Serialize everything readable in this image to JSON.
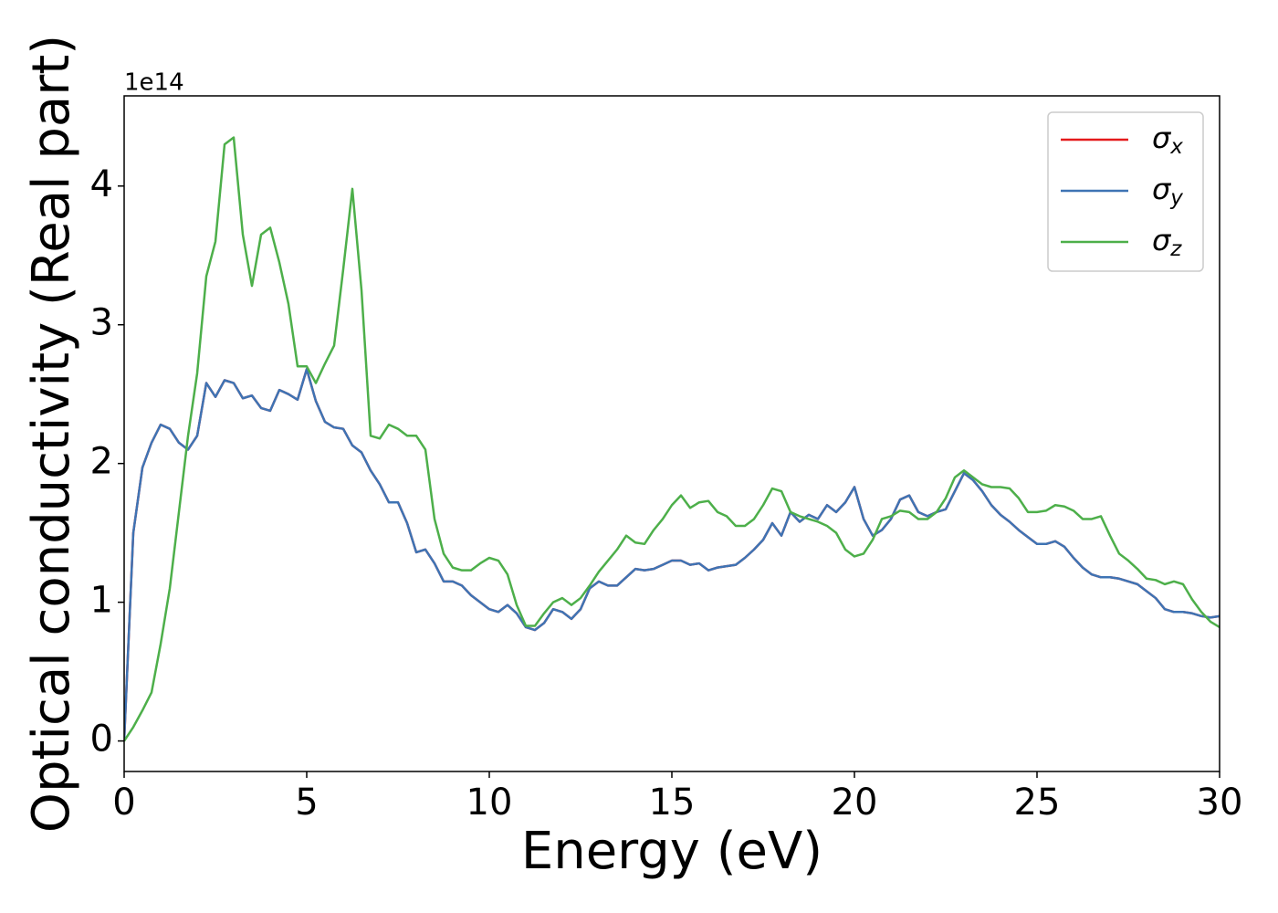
{
  "chart_data": {
    "type": "line",
    "xlabel": "Energy (eV)",
    "ylabel": "Optical conductivity (Real part)",
    "y_offset_label": "1e14",
    "x": [
      0,
      0.25,
      0.5,
      0.75,
      1,
      1.25,
      1.5,
      1.75,
      2,
      2.25,
      2.5,
      2.75,
      3,
      3.25,
      3.5,
      3.75,
      4,
      4.25,
      4.5,
      4.75,
      5,
      5.25,
      5.5,
      5.75,
      6,
      6.25,
      6.5,
      6.75,
      7,
      7.25,
      7.5,
      7.75,
      8,
      8.25,
      8.5,
      8.75,
      9,
      9.25,
      9.5,
      9.75,
      10,
      10.25,
      10.5,
      10.75,
      11,
      11.25,
      11.5,
      11.75,
      12,
      12.25,
      12.5,
      12.75,
      13,
      13.25,
      13.5,
      13.75,
      14,
      14.25,
      14.5,
      14.75,
      15,
      15.25,
      15.5,
      15.75,
      16,
      16.25,
      16.5,
      16.75,
      17,
      17.25,
      17.5,
      17.75,
      18,
      18.25,
      18.5,
      18.75,
      19,
      19.25,
      19.5,
      19.75,
      20,
      20.25,
      20.5,
      20.75,
      21,
      21.25,
      21.5,
      21.75,
      22,
      22.25,
      22.5,
      22.75,
      23,
      23.25,
      23.5,
      23.75,
      24,
      24.25,
      24.5,
      24.75,
      25,
      25.25,
      25.5,
      25.75,
      26,
      26.25,
      26.5,
      26.75,
      27,
      27.25,
      27.5,
      27.75,
      28,
      28.25,
      28.5,
      28.75,
      29,
      29.25,
      29.5,
      29.75,
      30
    ],
    "series": [
      {
        "name": "σx",
        "color": "#e41a1c",
        "values": [
          0,
          1.5,
          1.97,
          2.15,
          2.28,
          2.25,
          2.15,
          2.1,
          2.2,
          2.58,
          2.48,
          2.6,
          2.58,
          2.47,
          2.49,
          2.4,
          2.38,
          2.53,
          2.5,
          2.46,
          2.68,
          2.45,
          2.3,
          2.26,
          2.25,
          2.13,
          2.08,
          1.95,
          1.85,
          1.72,
          1.72,
          1.57,
          1.36,
          1.38,
          1.28,
          1.15,
          1.15,
          1.12,
          1.05,
          1.0,
          0.95,
          0.93,
          0.98,
          0.92,
          0.82,
          0.8,
          0.85,
          0.95,
          0.93,
          0.88,
          0.95,
          1.1,
          1.15,
          1.12,
          1.12,
          1.18,
          1.24,
          1.23,
          1.24,
          1.27,
          1.3,
          1.3,
          1.27,
          1.28,
          1.23,
          1.25,
          1.26,
          1.27,
          1.32,
          1.38,
          1.45,
          1.57,
          1.48,
          1.65,
          1.58,
          1.63,
          1.6,
          1.7,
          1.65,
          1.72,
          1.83,
          1.6,
          1.48,
          1.52,
          1.6,
          1.74,
          1.77,
          1.65,
          1.62,
          1.65,
          1.67,
          1.8,
          1.93,
          1.88,
          1.8,
          1.7,
          1.63,
          1.58,
          1.52,
          1.47,
          1.42,
          1.42,
          1.44,
          1.4,
          1.32,
          1.25,
          1.2,
          1.18,
          1.18,
          1.17,
          1.15,
          1.13,
          1.08,
          1.03,
          0.95,
          0.93,
          0.93,
          0.92,
          0.9,
          0.89,
          0.9
        ]
      },
      {
        "name": "σy",
        "color": "#3e74b4",
        "values": [
          0,
          1.5,
          1.97,
          2.15,
          2.28,
          2.25,
          2.15,
          2.1,
          2.2,
          2.58,
          2.48,
          2.6,
          2.58,
          2.47,
          2.49,
          2.4,
          2.38,
          2.53,
          2.5,
          2.46,
          2.68,
          2.45,
          2.3,
          2.26,
          2.25,
          2.13,
          2.08,
          1.95,
          1.85,
          1.72,
          1.72,
          1.57,
          1.36,
          1.38,
          1.28,
          1.15,
          1.15,
          1.12,
          1.05,
          1.0,
          0.95,
          0.93,
          0.98,
          0.92,
          0.82,
          0.8,
          0.85,
          0.95,
          0.93,
          0.88,
          0.95,
          1.1,
          1.15,
          1.12,
          1.12,
          1.18,
          1.24,
          1.23,
          1.24,
          1.27,
          1.3,
          1.3,
          1.27,
          1.28,
          1.23,
          1.25,
          1.26,
          1.27,
          1.32,
          1.38,
          1.45,
          1.57,
          1.48,
          1.65,
          1.58,
          1.63,
          1.6,
          1.7,
          1.65,
          1.72,
          1.83,
          1.6,
          1.48,
          1.52,
          1.6,
          1.74,
          1.77,
          1.65,
          1.62,
          1.65,
          1.67,
          1.8,
          1.93,
          1.88,
          1.8,
          1.7,
          1.63,
          1.58,
          1.52,
          1.47,
          1.42,
          1.42,
          1.44,
          1.4,
          1.32,
          1.25,
          1.2,
          1.18,
          1.18,
          1.17,
          1.15,
          1.13,
          1.08,
          1.03,
          0.95,
          0.93,
          0.93,
          0.92,
          0.9,
          0.89,
          0.9
        ]
      },
      {
        "name": "σz",
        "color": "#4daf4a",
        "values": [
          0,
          0.1,
          0.22,
          0.35,
          0.7,
          1.1,
          1.65,
          2.2,
          2.65,
          3.35,
          3.6,
          4.3,
          4.35,
          3.65,
          3.28,
          3.65,
          3.7,
          3.45,
          3.15,
          2.7,
          2.7,
          2.58,
          2.72,
          2.85,
          3.4,
          3.98,
          3.25,
          2.2,
          2.18,
          2.28,
          2.25,
          2.2,
          2.2,
          2.1,
          1.6,
          1.35,
          1.25,
          1.23,
          1.23,
          1.28,
          1.32,
          1.3,
          1.2,
          0.98,
          0.83,
          0.83,
          0.92,
          1.0,
          1.03,
          0.98,
          1.03,
          1.12,
          1.22,
          1.3,
          1.38,
          1.48,
          1.43,
          1.42,
          1.52,
          1.6,
          1.7,
          1.77,
          1.68,
          1.72,
          1.73,
          1.65,
          1.62,
          1.55,
          1.55,
          1.6,
          1.7,
          1.82,
          1.8,
          1.65,
          1.62,
          1.6,
          1.58,
          1.55,
          1.5,
          1.38,
          1.33,
          1.35,
          1.45,
          1.6,
          1.62,
          1.66,
          1.65,
          1.6,
          1.6,
          1.65,
          1.75,
          1.9,
          1.95,
          1.9,
          1.85,
          1.83,
          1.83,
          1.82,
          1.75,
          1.65,
          1.65,
          1.66,
          1.7,
          1.69,
          1.66,
          1.6,
          1.6,
          1.62,
          1.48,
          1.35,
          1.3,
          1.24,
          1.17,
          1.16,
          1.13,
          1.15,
          1.13,
          1.02,
          0.93,
          0.86,
          0.82
        ]
      }
    ],
    "xlim": [
      0,
      30
    ],
    "xticks": [
      0,
      5,
      10,
      15,
      20,
      25,
      30
    ],
    "ylim": [
      -0.22,
      4.65
    ],
    "yticks": [
      0,
      1,
      2,
      3,
      4
    ],
    "grid": false,
    "legend": "upper right"
  }
}
